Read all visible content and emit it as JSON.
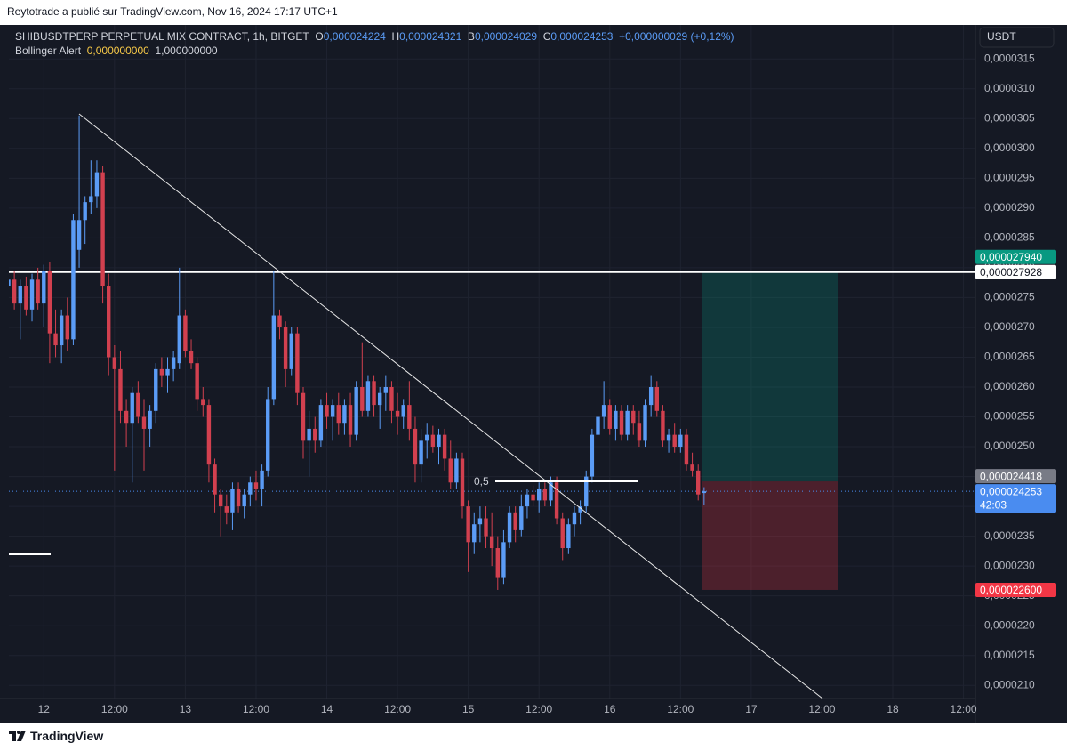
{
  "header": {
    "publisher": "Reytotrade a publié sur TradingView.com, Nov 16, 2024 17:17 UTC+1"
  },
  "footer": {
    "brand": "TradingView"
  },
  "chart_data": {
    "type": "candlestick",
    "legend": {
      "symbol": "SHIBUSDTPERP PERPETUAL MIX CONTRACT, 1h, BITGET",
      "fields": [
        {
          "label": "O",
          "value": "0,000024224"
        },
        {
          "label": "H",
          "value": "0,000024321"
        },
        {
          "label": "B",
          "value": "0,000024029"
        },
        {
          "label": "C",
          "value": "0,000024253"
        }
      ],
      "change": "+0,000000029 (+0,12%)",
      "indicator": {
        "name": "Bollinger Alert",
        "values": [
          "0,000000000",
          "1,000000000"
        ]
      }
    },
    "currency": "USDT",
    "fib_label": "0,5",
    "up_color": "#5b9cf6",
    "down_color": "#d2404f",
    "categories": [
      null,
      null,
      null,
      null,
      null,
      null,
      "12",
      null,
      null,
      null,
      null,
      null,
      null,
      null,
      null,
      null,
      null,
      null,
      "12:00",
      null,
      null,
      null,
      null,
      null,
      null,
      null,
      null,
      null,
      null,
      null,
      "13",
      null,
      null,
      null,
      null,
      null,
      null,
      null,
      null,
      null,
      null,
      null,
      "12:00",
      null,
      null,
      null,
      null,
      null,
      null,
      null,
      null,
      null,
      null,
      null,
      "14",
      null,
      null,
      null,
      null,
      null,
      null,
      null,
      null,
      null,
      null,
      null,
      "12:00",
      null,
      null,
      null,
      null,
      null,
      null,
      null,
      null,
      null,
      null,
      null,
      "15",
      null,
      null,
      null,
      null,
      null,
      null,
      null,
      null,
      null,
      null,
      null,
      "12:00",
      null,
      null,
      null,
      null,
      null,
      null,
      null,
      null,
      null,
      null,
      null,
      "16",
      null,
      null,
      null,
      null,
      null,
      null,
      null,
      null,
      null,
      null,
      null,
      "12:00",
      null,
      null,
      null,
      null,
      null,
      null,
      null,
      null,
      null,
      null,
      null,
      "17",
      null,
      null,
      null,
      null,
      null,
      null,
      null,
      null,
      null,
      null,
      null,
      "12:00",
      null,
      null,
      null,
      null,
      null,
      null,
      null,
      null,
      null,
      null,
      null,
      "18",
      null,
      null,
      null,
      null,
      null,
      null,
      null,
      null,
      null,
      null,
      null,
      "12:00",
      null
    ],
    "open": [
      2.77e-05,
      2.78e-05,
      2.74e-05,
      2.77e-05,
      2.73e-05,
      2.78e-05,
      2.74e-05,
      2.795e-05,
      2.69e-05,
      2.67e-05,
      2.72e-05,
      2.68e-05,
      2.83e-05,
      2.88e-05,
      2.91e-05,
      2.92e-05,
      2.96e-05,
      2.77e-05,
      2.65e-05,
      2.63e-05,
      2.56e-05,
      2.54e-05,
      2.59e-05,
      2.55e-05,
      2.53e-05,
      2.56e-05,
      2.63e-05,
      2.62e-05,
      2.63e-05,
      2.64e-05,
      2.72e-05,
      2.66e-05,
      2.64e-05,
      2.58e-05,
      2.57e-05,
      2.47e-05,
      2.42e-05,
      2.4e-05,
      2.39e-05,
      2.43e-05,
      2.4e-05,
      2.42e-05,
      2.44e-05,
      2.43e-05,
      2.46e-05,
      2.58e-05,
      2.72e-05,
      2.7e-05,
      2.63e-05,
      2.69e-05,
      2.59e-05,
      2.51e-05,
      2.53e-05,
      2.51e-05,
      2.57e-05,
      2.55e-05,
      2.57e-05,
      2.54e-05,
      2.57e-05,
      2.52e-05,
      2.6e-05,
      2.56e-05,
      2.61e-05,
      2.57e-05,
      2.59e-05,
      2.6e-05,
      2.56e-05,
      2.55e-05,
      2.57e-05,
      2.53e-05,
      2.47e-05,
      2.51e-05,
      2.52e-05,
      2.5e-05,
      2.52e-05,
      2.48e-05,
      2.44e-05,
      2.48e-05,
      2.4e-05,
      2.34e-05,
      2.37e-05,
      2.38e-05,
      2.35e-05,
      2.33e-05,
      2.28e-05,
      2.34e-05,
      2.39e-05,
      2.36e-05,
      2.4e-05,
      2.42e-05,
      2.41e-05,
      2.43e-05,
      2.41e-05,
      2.44e-05,
      2.38e-05,
      2.33e-05,
      2.37e-05,
      2.39e-05,
      2.4e-05,
      2.45e-05,
      2.52e-05,
      2.55e-05,
      2.57e-05,
      2.53e-05,
      2.56e-05,
      2.52e-05,
      2.56e-05,
      2.54e-05,
      2.51e-05,
      2.57e-05,
      2.6e-05,
      2.56e-05,
      2.51e-05,
      2.52e-05,
      2.5e-05,
      2.52e-05,
      2.47e-05,
      2.46e-05,
      2.4224e-05,
      null,
      null,
      null,
      null,
      null,
      null,
      null,
      null,
      null,
      null,
      null,
      null,
      null,
      null,
      null,
      null,
      null,
      null,
      null,
      null,
      null,
      null,
      null,
      null,
      null,
      null,
      null,
      null,
      null,
      null,
      null,
      null,
      null,
      null,
      null,
      null,
      null,
      null,
      null,
      null,
      null,
      null,
      null,
      null,
      null
    ],
    "high": [
      2.795e-05,
      2.795e-05,
      2.78e-05,
      2.785e-05,
      2.79e-05,
      2.8e-05,
      2.805e-05,
      2.81e-05,
      2.73e-05,
      2.73e-05,
      2.75e-05,
      2.89e-05,
      3.055e-05,
      2.92e-05,
      2.98e-05,
      2.98e-05,
      2.97e-05,
      2.79e-05,
      2.67e-05,
      2.66e-05,
      2.58e-05,
      2.6e-05,
      2.61e-05,
      2.58e-05,
      2.57e-05,
      2.64e-05,
      2.65e-05,
      2.65e-05,
      2.66e-05,
      2.8e-05,
      2.73e-05,
      2.68e-05,
      2.65e-05,
      2.6e-05,
      2.58e-05,
      2.48e-05,
      2.43e-05,
      2.42e-05,
      2.44e-05,
      2.44e-05,
      2.43e-05,
      2.45e-05,
      2.46e-05,
      2.47e-05,
      2.6e-05,
      2.795e-05,
      2.73e-05,
      2.71e-05,
      2.7e-05,
      2.7e-05,
      2.6e-05,
      2.56e-05,
      2.55e-05,
      2.58e-05,
      2.59e-05,
      2.58e-05,
      2.59e-05,
      2.58e-05,
      2.59e-05,
      2.61e-05,
      2.675e-05,
      2.62e-05,
      2.62e-05,
      2.6e-05,
      2.62e-05,
      2.61e-05,
      2.59e-05,
      2.58e-05,
      2.61e-05,
      2.55e-05,
      2.53e-05,
      2.54e-05,
      2.535e-05,
      2.53e-05,
      2.53e-05,
      2.51e-05,
      2.49e-05,
      2.49e-05,
      2.41e-05,
      2.39e-05,
      2.4e-05,
      2.4e-05,
      2.39e-05,
      2.35e-05,
      2.36e-05,
      2.4e-05,
      2.4e-05,
      2.42e-05,
      2.43e-05,
      2.435e-05,
      2.44e-05,
      2.44e-05,
      2.45e-05,
      2.45e-05,
      2.39e-05,
      2.38e-05,
      2.4e-05,
      2.41e-05,
      2.46e-05,
      2.53e-05,
      2.59e-05,
      2.61e-05,
      2.58e-05,
      2.57e-05,
      2.57e-05,
      2.57e-05,
      2.57e-05,
      2.56e-05,
      2.58e-05,
      2.62e-05,
      2.61e-05,
      2.57e-05,
      2.53e-05,
      2.54e-05,
      2.53e-05,
      2.53e-05,
      2.49e-05,
      2.47e-05,
      2.4321e-05,
      null,
      null,
      null,
      null,
      null,
      null,
      null,
      null,
      null,
      null,
      null,
      null,
      null,
      null,
      null,
      null,
      null,
      null,
      null,
      null,
      null,
      null,
      null,
      null,
      null,
      null,
      null,
      null,
      null,
      null,
      null,
      null,
      null,
      null,
      null,
      null,
      null,
      null,
      null,
      null,
      null,
      null,
      null,
      null,
      null
    ],
    "low": [
      2.75e-05,
      2.73e-05,
      2.68e-05,
      2.72e-05,
      2.71e-05,
      2.73e-05,
      2.7e-05,
      2.64e-05,
      2.65e-05,
      2.64e-05,
      2.66e-05,
      2.67e-05,
      2.8e-05,
      2.84e-05,
      2.89e-05,
      2.9e-05,
      2.74e-05,
      2.62e-05,
      2.46e-05,
      2.54e-05,
      2.5e-05,
      2.44e-05,
      2.54e-05,
      2.46e-05,
      2.5e-05,
      2.54e-05,
      2.6e-05,
      2.59e-05,
      2.61e-05,
      2.63e-05,
      2.65e-05,
      2.63e-05,
      2.56e-05,
      2.55e-05,
      2.44e-05,
      2.39e-05,
      2.35e-05,
      2.37e-05,
      2.36e-05,
      2.39e-05,
      2.38e-05,
      2.4e-05,
      2.41e-05,
      2.4e-05,
      2.45e-05,
      2.57e-05,
      2.68e-05,
      2.6e-05,
      2.62e-05,
      2.57e-05,
      2.48e-05,
      2.45e-05,
      2.49e-05,
      2.5e-05,
      2.53e-05,
      2.51e-05,
      2.52e-05,
      2.52e-05,
      2.5e-05,
      2.51e-05,
      2.55e-05,
      2.55e-05,
      2.55e-05,
      2.53e-05,
      2.56e-05,
      2.54e-05,
      2.52e-05,
      2.53e-05,
      2.51e-05,
      2.44e-05,
      2.44e-05,
      2.48e-05,
      2.49e-05,
      2.47e-05,
      2.46e-05,
      2.43e-05,
      2.43e-05,
      2.38e-05,
      2.29e-05,
      2.32e-05,
      2.34e-05,
      2.33e-05,
      2.3e-05,
      2.26e-05,
      2.27e-05,
      2.33e-05,
      2.34e-05,
      2.35e-05,
      2.38e-05,
      2.4e-05,
      2.39e-05,
      2.4e-05,
      2.4e-05,
      2.37e-05,
      2.31e-05,
      2.32e-05,
      2.35e-05,
      2.37e-05,
      2.39e-05,
      2.44e-05,
      2.5e-05,
      2.53e-05,
      2.52e-05,
      2.51e-05,
      2.51e-05,
      2.51e-05,
      2.52e-05,
      2.5e-05,
      2.5e-05,
      2.55e-05,
      2.55e-05,
      2.5e-05,
      2.49e-05,
      2.49e-05,
      2.49e-05,
      2.46e-05,
      2.45e-05,
      2.41e-05,
      2.4029e-05,
      null,
      null,
      null,
      null,
      null,
      null,
      null,
      null,
      null,
      null,
      null,
      null,
      null,
      null,
      null,
      null,
      null,
      null,
      null,
      null,
      null,
      null,
      null,
      null,
      null,
      null,
      null,
      null,
      null,
      null,
      null,
      null,
      null,
      null,
      null,
      null,
      null,
      null,
      null,
      null,
      null,
      null,
      null,
      null,
      null
    ],
    "close": [
      2.78e-05,
      2.74e-05,
      2.77e-05,
      2.73e-05,
      2.78e-05,
      2.74e-05,
      2.795e-05,
      2.69e-05,
      2.67e-05,
      2.72e-05,
      2.68e-05,
      2.88e-05,
      2.88e-05,
      2.91e-05,
      2.92e-05,
      2.96e-05,
      2.77e-05,
      2.65e-05,
      2.63e-05,
      2.56e-05,
      2.54e-05,
      2.59e-05,
      2.55e-05,
      2.53e-05,
      2.56e-05,
      2.63e-05,
      2.62e-05,
      2.63e-05,
      2.65e-05,
      2.72e-05,
      2.66e-05,
      2.64e-05,
      2.58e-05,
      2.57e-05,
      2.47e-05,
      2.42e-05,
      2.4e-05,
      2.39e-05,
      2.43e-05,
      2.4e-05,
      2.42e-05,
      2.44e-05,
      2.43e-05,
      2.46e-05,
      2.58e-05,
      2.72e-05,
      2.7e-05,
      2.63e-05,
      2.69e-05,
      2.59e-05,
      2.51e-05,
      2.53e-05,
      2.51e-05,
      2.57e-05,
      2.55e-05,
      2.57e-05,
      2.54e-05,
      2.57e-05,
      2.52e-05,
      2.6e-05,
      2.56e-05,
      2.61e-05,
      2.57e-05,
      2.59e-05,
      2.6e-05,
      2.56e-05,
      2.55e-05,
      2.57e-05,
      2.53e-05,
      2.47e-05,
      2.51e-05,
      2.52e-05,
      2.5e-05,
      2.52e-05,
      2.48e-05,
      2.44e-05,
      2.48e-05,
      2.4e-05,
      2.34e-05,
      2.37e-05,
      2.38e-05,
      2.35e-05,
      2.33e-05,
      2.28e-05,
      2.34e-05,
      2.39e-05,
      2.36e-05,
      2.4e-05,
      2.42e-05,
      2.41e-05,
      2.43e-05,
      2.41e-05,
      2.44e-05,
      2.38e-05,
      2.33e-05,
      2.37e-05,
      2.39e-05,
      2.4e-05,
      2.45e-05,
      2.52e-05,
      2.55e-05,
      2.57e-05,
      2.53e-05,
      2.56e-05,
      2.52e-05,
      2.56e-05,
      2.54e-05,
      2.51e-05,
      2.57e-05,
      2.6e-05,
      2.56e-05,
      2.51e-05,
      2.52e-05,
      2.5e-05,
      2.52e-05,
      2.47e-05,
      2.46e-05,
      2.42e-05,
      2.4253e-05,
      null,
      null,
      null,
      null,
      null,
      null,
      null,
      null,
      null,
      null,
      null,
      null,
      null,
      null,
      null,
      null,
      null,
      null,
      null,
      null,
      null,
      null,
      null,
      null,
      null,
      null,
      null,
      null,
      null,
      null,
      null,
      null,
      null,
      null,
      null,
      null,
      null,
      null,
      null,
      null,
      null,
      null,
      null,
      null,
      null
    ],
    "ylim": [
      2.078e-05,
      3.207e-05
    ],
    "yticks": [
      {
        "value": 3.15e-05,
        "label": "0,0000315"
      },
      {
        "value": 3.1e-05,
        "label": "0,0000310"
      },
      {
        "value": 3.05e-05,
        "label": "0,0000305"
      },
      {
        "value": 3e-05,
        "label": "0,0000300"
      },
      {
        "value": 2.95e-05,
        "label": "0,0000295"
      },
      {
        "value": 2.9e-05,
        "label": "0,0000290"
      },
      {
        "value": 2.85e-05,
        "label": "0,0000285"
      },
      {
        "value": 2.8e-05,
        "label": "0,0000280"
      },
      {
        "value": 2.75e-05,
        "label": "0,0000275"
      },
      {
        "value": 2.7e-05,
        "label": "0,0000270"
      },
      {
        "value": 2.65e-05,
        "label": "0,0000265"
      },
      {
        "value": 2.6e-05,
        "label": "0,0000260"
      },
      {
        "value": 2.55e-05,
        "label": "0,0000255"
      },
      {
        "value": 2.5e-05,
        "label": "0,0000250"
      },
      {
        "value": 2.45e-05,
        "label": "0,0000245"
      },
      {
        "value": 2.4e-05,
        "label": "0,0000240"
      },
      {
        "value": 2.35e-05,
        "label": "0,0000235"
      },
      {
        "value": 2.3e-05,
        "label": "0,0000230"
      },
      {
        "value": 2.25e-05,
        "label": "0,0000225"
      },
      {
        "value": 2.2e-05,
        "label": "0,0000220"
      },
      {
        "value": 2.15e-05,
        "label": "0,0000215"
      },
      {
        "value": 2.1e-05,
        "label": "0,0000210"
      }
    ],
    "grid": true,
    "price_tags": {
      "values": [
        2.794e-05,
        2.7928e-05,
        2.4418e-05,
        2.4253e-05,
        2.26e-05
      ],
      "value_labels": [
        "0,000027940",
        "0,000027928",
        "0,000024418",
        "0,000024253",
        "0,000022600"
      ],
      "colors": [
        "#089981",
        "#ffffff",
        "#787b86",
        "#4a8cf0",
        "#f23645"
      ]
    },
    "countdown": "42:03"
  }
}
